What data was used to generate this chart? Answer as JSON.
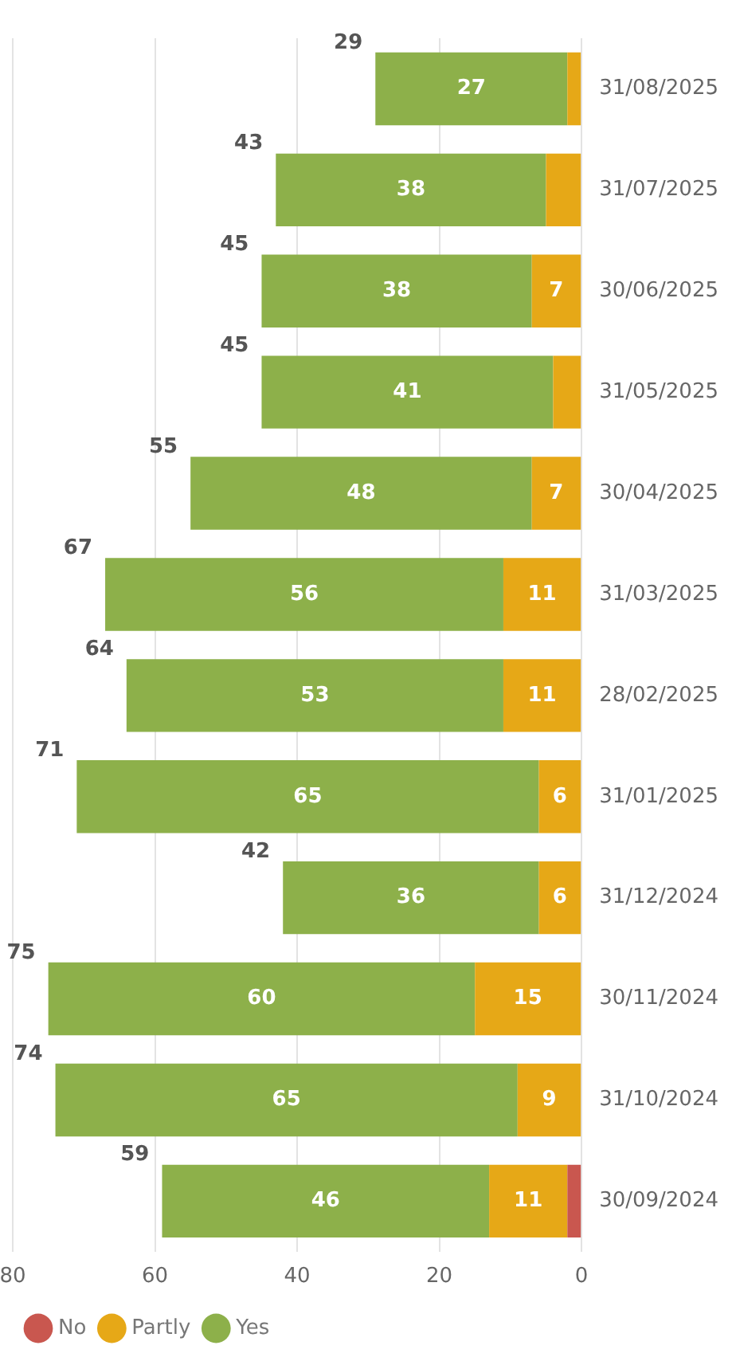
{
  "chart_data": {
    "type": "bar",
    "stacked": true,
    "orientation": "horizontal",
    "categories": [
      "31/08/2025",
      "31/07/2025",
      "30/06/2025",
      "31/05/2025",
      "30/04/2025",
      "31/03/2025",
      "28/02/2025",
      "31/01/2025",
      "31/12/2024",
      "30/11/2024",
      "31/10/2024",
      "30/09/2024"
    ],
    "series": [
      {
        "name": "No",
        "color": "#c9574f",
        "values": [
          0,
          0,
          0,
          0,
          0,
          0,
          0,
          0,
          0,
          0,
          0,
          2
        ],
        "value_labels": [
          null,
          null,
          null,
          null,
          null,
          null,
          null,
          null,
          null,
          null,
          null,
          null
        ]
      },
      {
        "name": "Partly",
        "color": "#e6a817",
        "values": [
          2,
          5,
          7,
          4,
          7,
          11,
          11,
          6,
          6,
          15,
          9,
          11
        ],
        "value_labels": [
          null,
          null,
          "7",
          null,
          "7",
          "11",
          "11",
          "6",
          "6",
          "15",
          "9",
          "11"
        ]
      },
      {
        "name": "Yes",
        "color": "#8db04a",
        "values": [
          27,
          38,
          38,
          41,
          48,
          56,
          53,
          65,
          36,
          60,
          65,
          46
        ],
        "value_labels": [
          "27",
          "38",
          "38",
          "41",
          "48",
          "56",
          "53",
          "65",
          "36",
          "60",
          "65",
          "46"
        ]
      }
    ],
    "totals": [
      "29",
      "43",
      "45",
      "45",
      "55",
      "67",
      "64",
      "71",
      "42",
      "75",
      "74",
      "59"
    ],
    "xlim": [
      80,
      0
    ],
    "xticks": [
      0,
      20,
      40,
      60,
      80
    ],
    "grid": "x",
    "legend": "bottom left"
  }
}
